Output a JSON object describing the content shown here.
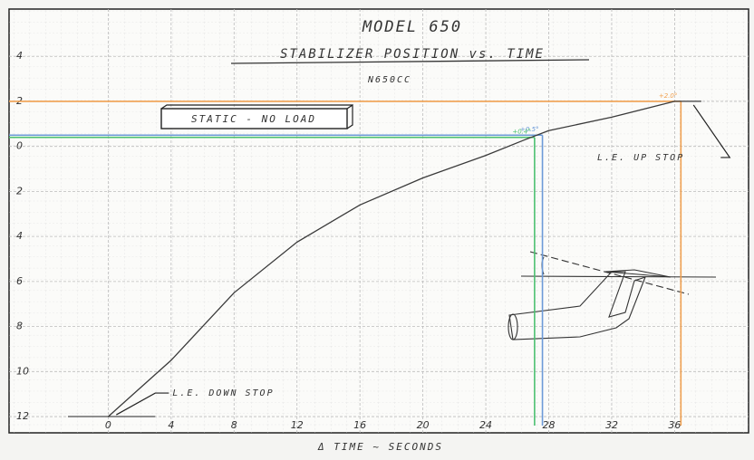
{
  "chart_data": {
    "type": "line",
    "title": "MODEL 650",
    "subtitle": "STABILIZER POSITION vs. TIME",
    "registration": "N650CC",
    "note": "STATIC - NO LOAD",
    "xlabel": "Δ TIME ~ SECONDS",
    "x": [
      0,
      4,
      8,
      12,
      16,
      20,
      24,
      26.5,
      28,
      32,
      36,
      37.7
    ],
    "series": [
      {
        "color": "#3a3a3a",
        "values": [
          -12,
          -9.5,
          -6.5,
          -4.25,
          -2.6,
          -1.4,
          -0.4,
          0.3,
          0.7,
          1.3,
          2.0,
          2.0
        ]
      }
    ],
    "xlim": [
      -6.3,
      40.7
    ],
    "ylim": [
      -12.4,
      6.1
    ],
    "xticks": [
      0,
      4,
      8,
      12,
      16,
      20,
      24,
      28,
      32,
      36
    ],
    "yticks": [
      4,
      2,
      0,
      {
        "value": -2,
        "label": "2"
      },
      {
        "value": -4,
        "label": "4"
      },
      {
        "value": -6,
        "label": "6"
      },
      {
        "value": -8,
        "label": "8"
      },
      {
        "value": -10,
        "label": "10"
      },
      {
        "value": -12,
        "label": "12"
      }
    ],
    "grid": true,
    "reference_lines": [
      {
        "label": "+2.0°",
        "x": 36.4,
        "y": 2,
        "color": "#f0a050"
      },
      {
        "label": "+0.5°",
        "x": 27.6,
        "y": 0.5,
        "color": "#6c9ad8"
      },
      {
        "label": "+0.4°",
        "x": 27.1,
        "y": 0.4,
        "color": "#4cc070"
      }
    ],
    "stops": [
      {
        "label": "L.E. UP STOP",
        "x": 37.2,
        "y": 2
      },
      {
        "label": "L.E. DOWN STOP",
        "x": 0.4,
        "y": -12
      }
    ]
  }
}
